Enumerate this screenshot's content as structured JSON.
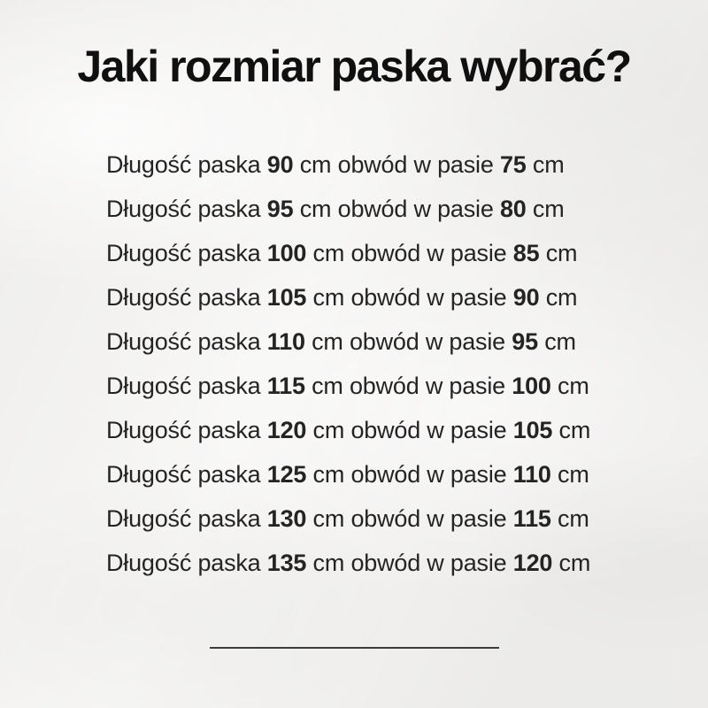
{
  "page": {
    "title": "Jaki rozmiar paska wybrać?"
  },
  "size_list": {
    "prefix": "Długość paska",
    "middle": "cm obwód w pasie",
    "unit": "cm",
    "rows": [
      {
        "belt_length_cm": "90",
        "waist_cm": "75"
      },
      {
        "belt_length_cm": "95",
        "waist_cm": "80"
      },
      {
        "belt_length_cm": "100",
        "waist_cm": "85"
      },
      {
        "belt_length_cm": "105",
        "waist_cm": "90"
      },
      {
        "belt_length_cm": "110",
        "waist_cm": "95"
      },
      {
        "belt_length_cm": "115",
        "waist_cm": "100"
      },
      {
        "belt_length_cm": "120",
        "waist_cm": "105"
      },
      {
        "belt_length_cm": "125",
        "waist_cm": "110"
      },
      {
        "belt_length_cm": "130",
        "waist_cm": "115"
      },
      {
        "belt_length_cm": "135",
        "waist_cm": "120"
      }
    ]
  },
  "colors": {
    "bg": "#f1f0ee",
    "text": "#242424",
    "title": "#101010",
    "divider": "#3c3c3c"
  }
}
